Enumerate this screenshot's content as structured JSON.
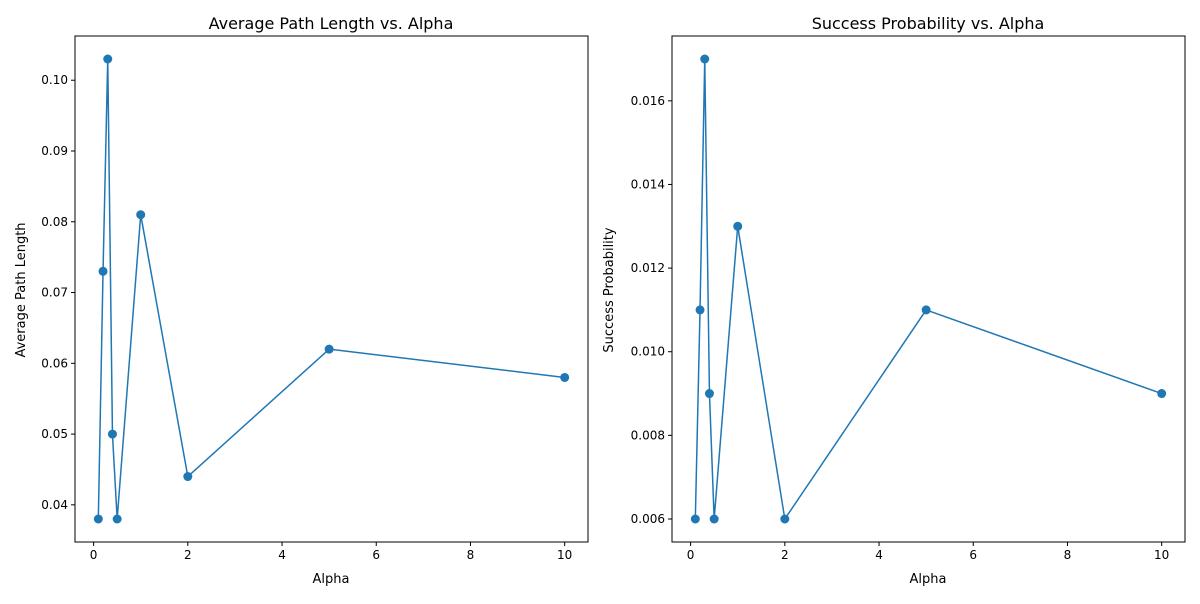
{
  "figure": {
    "background": "#ffffff",
    "line_color": "#1f77b4"
  },
  "chart_data": [
    {
      "type": "line",
      "title": "Average Path Length vs. Alpha",
      "xlabel": "Alpha",
      "ylabel": "Average Path Length",
      "x": [
        0.1,
        0.2,
        0.3,
        0.4,
        0.5,
        1,
        2,
        5,
        10
      ],
      "y": [
        0.038,
        0.073,
        0.103,
        0.05,
        0.038,
        0.081,
        0.044,
        0.062,
        0.058
      ],
      "xlim": [
        -0.395,
        10.495
      ],
      "ylim": [
        0.03475,
        0.10625
      ],
      "xticks": [
        0,
        2,
        4,
        6,
        8,
        10
      ],
      "xtick_labels": [
        "0",
        "2",
        "4",
        "6",
        "8",
        "10"
      ],
      "yticks": [
        0.04,
        0.05,
        0.06,
        0.07,
        0.08,
        0.09,
        0.1
      ],
      "ytick_labels": [
        "0.04",
        "0.05",
        "0.06",
        "0.07",
        "0.08",
        "0.09",
        "0.10"
      ],
      "markers": true,
      "grid": false,
      "legend": false
    },
    {
      "type": "line",
      "title": "Success Probability vs. Alpha",
      "xlabel": "Alpha",
      "ylabel": "Success Probability",
      "x": [
        0.1,
        0.2,
        0.3,
        0.4,
        0.5,
        1,
        2,
        5,
        10
      ],
      "y": [
        0.006,
        0.011,
        0.017,
        0.009,
        0.006,
        0.013,
        0.006,
        0.011,
        0.009
      ],
      "xlim": [
        -0.395,
        10.495
      ],
      "ylim": [
        0.00545,
        0.01755
      ],
      "xticks": [
        0,
        2,
        4,
        6,
        8,
        10
      ],
      "xtick_labels": [
        "0",
        "2",
        "4",
        "6",
        "8",
        "10"
      ],
      "yticks": [
        0.006,
        0.008,
        0.01,
        0.012,
        0.014,
        0.016
      ],
      "ytick_labels": [
        "0.006",
        "0.008",
        "0.010",
        "0.012",
        "0.014",
        "0.016"
      ],
      "markers": true,
      "grid": false,
      "legend": false
    }
  ]
}
